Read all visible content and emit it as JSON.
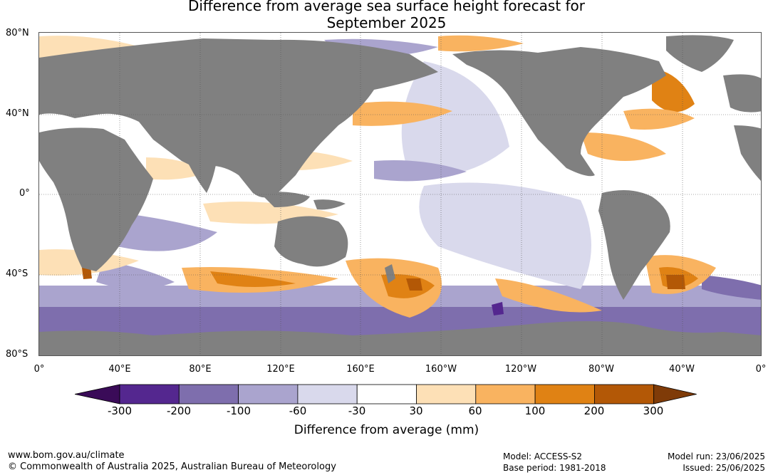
{
  "title_line1": "Difference from average sea surface height forecast for",
  "title_line2": "September 2025",
  "lat_labels": [
    "80°N",
    "40°N",
    "0°",
    "40°S",
    "80°S"
  ],
  "lon_labels": [
    "0°",
    "40°E",
    "80°E",
    "120°E",
    "160°E",
    "160°W",
    "120°W",
    "80°W",
    "40°W",
    "0°"
  ],
  "colorbar": {
    "tick_labels": [
      "-300",
      "-200",
      "-100",
      "-60",
      "-30",
      "30",
      "60",
      "100",
      "200",
      "300"
    ],
    "colors": [
      "#3a0b58",
      "#54278f",
      "#7e6ead",
      "#aaa4ce",
      "#d9d9ec",
      "#ffffff",
      "#fde0b6",
      "#f9b360",
      "#e08214",
      "#b35806",
      "#7f3b08"
    ],
    "title": "Difference from average (mm)"
  },
  "map_colors": {
    "land": "#808080",
    "ocean_neutral": "#ffffff",
    "grid": "#555555"
  },
  "footer": {
    "website": "www.bom.gov.au/climate",
    "copyright": "© Commonwealth of Australia 2025, Australian Bureau of Meteorology",
    "model": "Model: ACCESS-S2",
    "base_period": "Base period: 1981-2018",
    "model_run": "Model run: 23/06/2025",
    "issued": "Issued: 25/06/2025"
  }
}
